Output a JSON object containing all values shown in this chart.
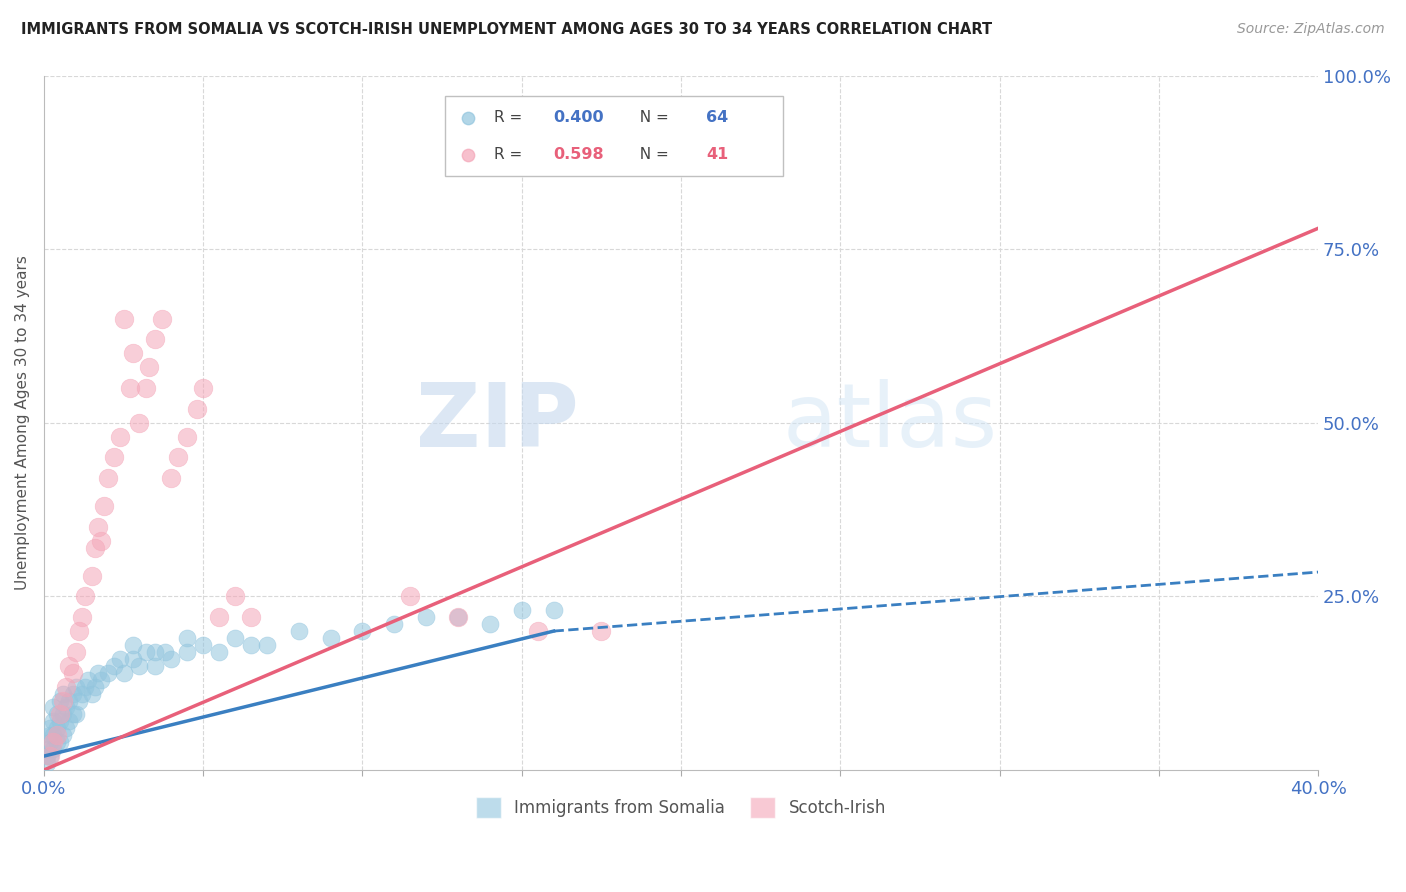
{
  "title": "IMMIGRANTS FROM SOMALIA VS SCOTCH-IRISH UNEMPLOYMENT AMONG AGES 30 TO 34 YEARS CORRELATION CHART",
  "source": "Source: ZipAtlas.com",
  "ylabel": "Unemployment Among Ages 30 to 34 years",
  "xlim": [
    0.0,
    0.4
  ],
  "ylim": [
    0.0,
    1.0
  ],
  "somalia_color": "#92c5de",
  "scotch_color": "#f4a6b8",
  "somalia_line_color": "#3a7fc1",
  "scotch_line_color": "#e8607a",
  "watermark_zip": "ZIP",
  "watermark_atlas": "atlas",
  "background_color": "#ffffff",
  "grid_color": "#d8d8d8",
  "somalia_scatter_x": [
    0.001,
    0.001,
    0.001,
    0.002,
    0.002,
    0.002,
    0.002,
    0.003,
    0.003,
    0.003,
    0.003,
    0.004,
    0.004,
    0.004,
    0.005,
    0.005,
    0.005,
    0.006,
    0.006,
    0.006,
    0.007,
    0.007,
    0.008,
    0.008,
    0.009,
    0.009,
    0.01,
    0.01,
    0.011,
    0.012,
    0.013,
    0.014,
    0.015,
    0.016,
    0.017,
    0.018,
    0.02,
    0.022,
    0.025,
    0.028,
    0.03,
    0.032,
    0.035,
    0.038,
    0.04,
    0.045,
    0.05,
    0.055,
    0.06,
    0.065,
    0.07,
    0.08,
    0.09,
    0.1,
    0.11,
    0.12,
    0.13,
    0.14,
    0.15,
    0.16,
    0.024,
    0.028,
    0.035,
    0.045
  ],
  "somalia_scatter_y": [
    0.01,
    0.02,
    0.03,
    0.02,
    0.04,
    0.05,
    0.06,
    0.03,
    0.05,
    0.07,
    0.09,
    0.04,
    0.06,
    0.08,
    0.04,
    0.07,
    0.1,
    0.05,
    0.08,
    0.11,
    0.06,
    0.09,
    0.07,
    0.1,
    0.08,
    0.11,
    0.08,
    0.12,
    0.1,
    0.11,
    0.12,
    0.13,
    0.11,
    0.12,
    0.14,
    0.13,
    0.14,
    0.15,
    0.14,
    0.16,
    0.15,
    0.17,
    0.15,
    0.17,
    0.16,
    0.17,
    0.18,
    0.17,
    0.19,
    0.18,
    0.18,
    0.2,
    0.19,
    0.2,
    0.21,
    0.22,
    0.22,
    0.21,
    0.23,
    0.23,
    0.16,
    0.18,
    0.17,
    0.19
  ],
  "scotch_scatter_x": [
    0.002,
    0.003,
    0.004,
    0.005,
    0.006,
    0.007,
    0.008,
    0.009,
    0.01,
    0.011,
    0.012,
    0.013,
    0.015,
    0.016,
    0.017,
    0.018,
    0.019,
    0.02,
    0.022,
    0.024,
    0.025,
    0.027,
    0.028,
    0.03,
    0.032,
    0.033,
    0.035,
    0.037,
    0.04,
    0.042,
    0.045,
    0.048,
    0.05,
    0.055,
    0.06,
    0.065,
    0.115,
    0.13,
    0.155,
    0.175,
    0.19
  ],
  "scotch_scatter_y": [
    0.02,
    0.04,
    0.05,
    0.08,
    0.1,
    0.12,
    0.15,
    0.14,
    0.17,
    0.2,
    0.22,
    0.25,
    0.28,
    0.32,
    0.35,
    0.33,
    0.38,
    0.42,
    0.45,
    0.48,
    0.65,
    0.55,
    0.6,
    0.5,
    0.55,
    0.58,
    0.62,
    0.65,
    0.42,
    0.45,
    0.48,
    0.52,
    0.55,
    0.22,
    0.25,
    0.22,
    0.25,
    0.22,
    0.2,
    0.2,
    0.88
  ],
  "somalia_trendline_x": [
    0.0,
    0.4
  ],
  "somalia_trendline_y": [
    0.02,
    0.2
  ],
  "scotch_trendline_x": [
    0.0,
    0.4
  ],
  "scotch_trendline_y": [
    0.0,
    0.78
  ]
}
